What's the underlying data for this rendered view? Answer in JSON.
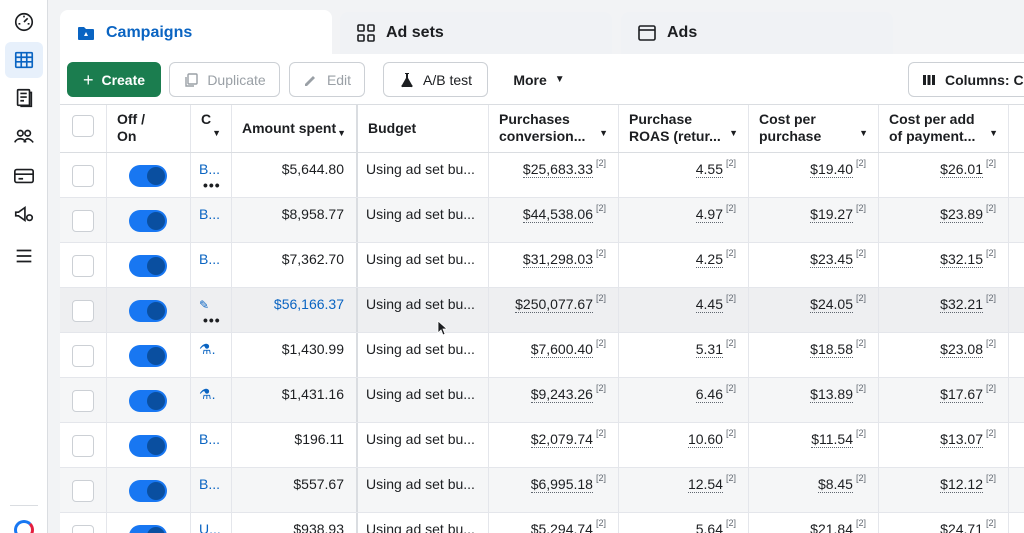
{
  "rail": {
    "items": [
      {
        "icon": "gauge-icon"
      },
      {
        "icon": "table-icon",
        "active": true
      },
      {
        "icon": "pages-icon"
      },
      {
        "icon": "people-icon"
      },
      {
        "icon": "credit-card-icon"
      },
      {
        "icon": "megaphone-gear-icon"
      },
      {
        "icon": "menu-icon"
      }
    ]
  },
  "tabs": {
    "campaigns": "Campaigns",
    "ad_sets": "Ad sets",
    "ads": "Ads"
  },
  "toolbar": {
    "create": "Create",
    "duplicate": "Duplicate",
    "edit": "Edit",
    "ab_test": "A/B test",
    "more": "More",
    "columns": "Columns: Co"
  },
  "table": {
    "headers": {
      "offon_line1": "Off /",
      "offon_line2": "On",
      "name": "C",
      "amount_spent": "Amount spent",
      "budget": "Budget",
      "purchases_line1": "Purchases",
      "purchases_line2": "conversion...",
      "roas_line1": "Purchase",
      "roas_line2": "ROAS (retur...",
      "cpp_line1": "Cost per",
      "cpp_line2": "purchase",
      "cpap_line1": "Cost per add",
      "cpap_line2": "of payment...",
      "ref_marker": "[2]"
    },
    "rows": [
      {
        "name": "B...",
        "amount": "$5,644.80",
        "budget": "Using ad set bu...",
        "purchases": "$25,683.33",
        "roas": "4.55",
        "cpp": "$19.40",
        "cpap": "$26.01",
        "ref": "[2]",
        "dots": "•••"
      },
      {
        "name": "B...",
        "amount": "$8,958.77",
        "budget": "Using ad set bu...",
        "purchases": "$44,538.06",
        "roas": "4.97",
        "cpp": "$19.27",
        "cpap": "$23.89",
        "ref": "[2]"
      },
      {
        "name": "B...",
        "amount": "$7,362.70",
        "budget": "Using ad set bu...",
        "purchases": "$31,298.03",
        "roas": "4.25",
        "cpp": "$23.45",
        "cpap": "$32.15",
        "ref": "[2]"
      },
      {
        "name": "",
        "amount": "$56,166.37",
        "budget": "Using ad set bu...",
        "purchases": "$250,077.67",
        "roas": "4.45",
        "cpp": "$24.05",
        "cpap": "$32.21",
        "ref": "[2]",
        "dots": "•••"
      },
      {
        "name": ".",
        "amount": "$1,430.99",
        "budget": "Using ad set bu...",
        "purchases": "$7,600.40",
        "roas": "5.31",
        "cpp": "$18.58",
        "cpap": "$23.08",
        "ref": "[2]"
      },
      {
        "name": ".",
        "amount": "$1,431.16",
        "budget": "Using ad set bu...",
        "purchases": "$9,243.26",
        "roas": "6.46",
        "cpp": "$13.89",
        "cpap": "$17.67",
        "ref": "[2]"
      },
      {
        "name": "B...",
        "amount": "$196.11",
        "budget": "Using ad set bu...",
        "purchases": "$2,079.74",
        "roas": "10.60",
        "cpp": "$11.54",
        "cpap": "$13.07",
        "ref": "[2]"
      },
      {
        "name": "B...",
        "amount": "$557.67",
        "budget": "Using ad set bu...",
        "purchases": "$6,995.18",
        "roas": "12.54",
        "cpp": "$8.45",
        "cpap": "$12.12",
        "ref": "[2]"
      },
      {
        "name": "U...",
        "amount": "$938.93",
        "budget": "Using ad set bu...",
        "purchases": "$5,294.74",
        "roas": "5.64",
        "cpp": "$21.84",
        "cpap": "$24.71",
        "ref": "[2]"
      }
    ]
  },
  "colors": {
    "primary_green": "#1b7d4f",
    "link_blue": "#0a64c2",
    "toggle_blue": "#1877f2"
  }
}
